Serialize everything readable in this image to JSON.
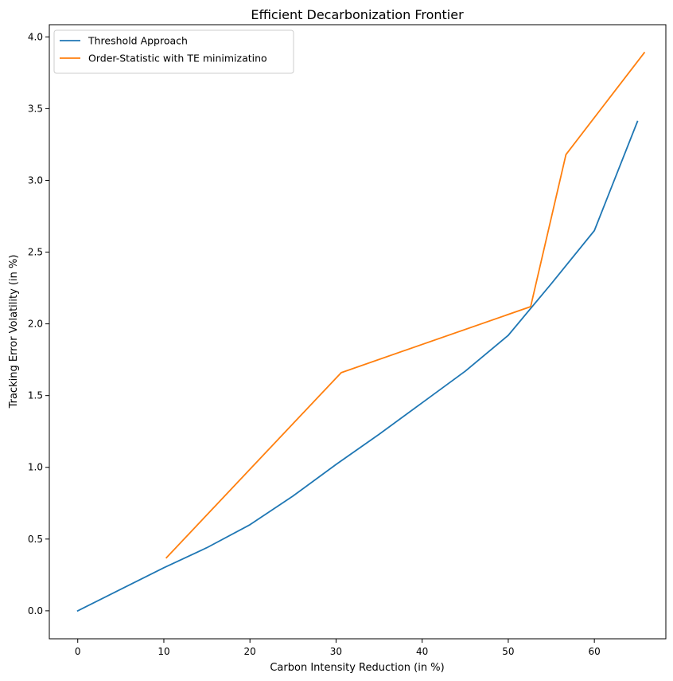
{
  "chart_data": {
    "type": "line",
    "title": "Efficient Decarbonization Frontier",
    "xlabel": "Carbon Intensity Reduction (in %)",
    "ylabel": "Tracking Error Volatility (in %)",
    "xlim": [
      -3.3,
      68.3
    ],
    "ylim": [
      -0.195,
      4.085
    ],
    "xticks": [
      0,
      10,
      20,
      30,
      40,
      50,
      60
    ],
    "yticks": [
      0.0,
      0.5,
      1.0,
      1.5,
      2.0,
      2.5,
      3.0,
      3.5,
      4.0
    ],
    "grid": false,
    "legend_position": "top-left",
    "series": [
      {
        "name": "Threshold Approach",
        "color": "#1f77b4",
        "x": [
          0,
          5,
          10,
          15,
          20,
          25,
          30,
          35,
          40,
          45,
          50,
          55,
          60,
          65
        ],
        "y": [
          0.0,
          0.15,
          0.3,
          0.44,
          0.6,
          0.8,
          1.02,
          1.23,
          1.45,
          1.67,
          1.92,
          2.28,
          2.65,
          3.41
        ]
      },
      {
        "name": "Order-Statistic with TE minimizatino",
        "color": "#ff7f0e",
        "x": [
          10.3,
          30.6,
          52.6,
          56.7,
          65.8
        ],
        "y": [
          0.37,
          1.66,
          2.12,
          3.18,
          3.89
        ]
      }
    ]
  }
}
